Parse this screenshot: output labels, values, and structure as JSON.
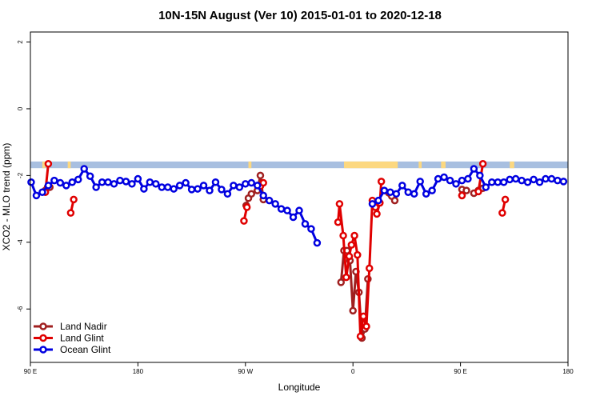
{
  "chart_data": {
    "type": "line",
    "title": "10N-15N August (Ver 10)   2015-01-01 to 2020-12-18",
    "xlabel": "Longitude",
    "ylabel": "XCO2 - MLO trend (ppm)",
    "xlim": [
      90,
      450
    ],
    "ylim": [
      -7.6,
      2.3
    ],
    "x_ticks": [
      {
        "value": 90,
        "label": "90 E"
      },
      {
        "value": 162,
        "label": "180"
      },
      {
        "value": 234,
        "label": "90 W"
      },
      {
        "value": 306,
        "label": "0"
      },
      {
        "value": 378,
        "label": "90 E"
      },
      {
        "value": 450,
        "label": "180"
      }
    ],
    "y_ticks": [
      {
        "value": 2,
        "label": "2"
      },
      {
        "value": 0,
        "label": "0"
      },
      {
        "value": -2,
        "label": "-2"
      },
      {
        "value": -4,
        "label": "-4"
      },
      {
        "value": -6,
        "label": "-6"
      }
    ],
    "grid": false,
    "legend": "bottom-left",
    "land_strip": {
      "y_range": [
        -1.58,
        -1.78
      ],
      "ocean_color": "#a8bfe0",
      "land_color": "#fcd880",
      "land_segments": [
        [
          98,
          100
        ],
        [
          115,
          117
        ],
        [
          236,
          238
        ],
        [
          300,
          336
        ],
        [
          350,
          352
        ],
        [
          365,
          368
        ],
        [
          411,
          414
        ]
      ]
    },
    "series": [
      {
        "name": "Land Nadir",
        "color": "#a02020",
        "segments": [
          [
            [
              100,
              -2.45
            ],
            [
              101.5,
              -2.35
            ],
            [
              103,
              -2.35
            ]
          ],
          [
            [
              234.5,
              -2.9
            ],
            [
              236,
              -2.68
            ],
            [
              238,
              -2.55
            ]
          ],
          [
            [
              242,
              -2.45
            ],
            [
              244,
              -2.0
            ],
            [
              246,
              -2.72
            ]
          ],
          [
            [
              298,
              -5.2
            ],
            [
              300,
              -4.25
            ],
            [
              302,
              -4.25
            ],
            [
              304,
              -4.55
            ],
            [
              306,
              -6.05
            ],
            [
              308,
              -4.88
            ],
            [
              310,
              -5.5
            ],
            [
              312,
              -6.87
            ],
            [
              314,
              -6.6
            ],
            [
              316,
              -5.1
            ]
          ],
          [
            [
              330,
              -2.52
            ],
            [
              332,
              -2.62
            ],
            [
              334,
              -2.75
            ]
          ],
          [
            [
              379,
              -2.42
            ],
            [
              382,
              -2.45
            ]
          ],
          [
            [
              387,
              -2.53
            ],
            [
              390,
              -2.45
            ],
            [
              393,
              -2.38
            ]
          ]
        ]
      },
      {
        "name": "Land Glint",
        "color": "#e00000",
        "segments": [
          [
            [
              100,
              -2.5
            ],
            [
              102,
              -1.65
            ]
          ],
          [
            [
              117,
              -3.12
            ],
            [
              119,
              -2.72
            ]
          ],
          [
            [
              233,
              -3.36
            ],
            [
              235,
              -2.95
            ]
          ],
          [
            [
              244,
              -2.32
            ],
            [
              246,
              -2.22
            ]
          ],
          [
            [
              296,
              -3.4
            ],
            [
              297,
              -2.85
            ],
            [
              299.5,
              -3.8
            ],
            [
              301.5,
              -5.05
            ],
            [
              303.5,
              -4.42
            ],
            [
              305,
              -4.08
            ],
            [
              307,
              -3.8
            ],
            [
              309,
              -4.38
            ],
            [
              311,
              -6.82
            ],
            [
              313,
              -6.22
            ],
            [
              315,
              -6.52
            ],
            [
              317,
              -4.78
            ],
            [
              319,
              -2.75
            ],
            [
              321,
              -2.95
            ],
            [
              322,
              -3.15
            ],
            [
              324,
              -2.82
            ],
            [
              325,
              -2.18
            ]
          ],
          [
            [
              379,
              -2.6
            ],
            [
              379,
              -2.6
            ]
          ],
          [
            [
              390,
              -2.48
            ],
            [
              393,
              -1.65
            ]
          ],
          [
            [
              406,
              -3.12
            ],
            [
              408,
              -2.72
            ]
          ]
        ]
      },
      {
        "name": "Ocean Glint",
        "color": "#0000e0",
        "segments": [
          [
            [
              90.5,
              -2.2
            ],
            [
              94,
              -2.6
            ],
            [
              98,
              -2.5
            ],
            [
              102,
              -2.3
            ],
            [
              106,
              -2.15
            ],
            [
              110,
              -2.22
            ],
            [
              114,
              -2.3
            ],
            [
              118,
              -2.2
            ],
            [
              122,
              -2.12
            ],
            [
              126,
              -1.8
            ],
            [
              130,
              -2.02
            ],
            [
              134,
              -2.35
            ],
            [
              138,
              -2.2
            ],
            [
              142,
              -2.2
            ],
            [
              146,
              -2.25
            ],
            [
              150,
              -2.15
            ],
            [
              154,
              -2.18
            ],
            [
              158,
              -2.25
            ],
            [
              162,
              -2.1
            ],
            [
              166,
              -2.4
            ],
            [
              170,
              -2.2
            ],
            [
              174,
              -2.25
            ],
            [
              178,
              -2.35
            ],
            [
              182,
              -2.35
            ],
            [
              186,
              -2.4
            ],
            [
              190,
              -2.3
            ],
            [
              194,
              -2.22
            ],
            [
              198,
              -2.42
            ],
            [
              202,
              -2.4
            ],
            [
              206,
              -2.3
            ],
            [
              210,
              -2.45
            ],
            [
              214,
              -2.2
            ],
            [
              218,
              -2.42
            ],
            [
              222,
              -2.55
            ],
            [
              226,
              -2.3
            ],
            [
              230,
              -2.35
            ],
            [
              234,
              -2.25
            ],
            [
              238,
              -2.22
            ],
            [
              242,
              -2.3
            ],
            [
              246,
              -2.6
            ],
            [
              250,
              -2.75
            ],
            [
              254,
              -2.85
            ],
            [
              258,
              -3.0
            ],
            [
              262,
              -3.05
            ],
            [
              266,
              -3.25
            ],
            [
              270,
              -3.05
            ],
            [
              274,
              -3.45
            ],
            [
              278,
              -3.6
            ],
            [
              282,
              -4.02
            ]
          ]
        ]
      },
      {
        "name": "Ocean Glint",
        "color": "#0000e0",
        "segments": [
          [
            [
              319,
              -2.85
            ],
            [
              323,
              -2.75
            ],
            [
              327,
              -2.45
            ],
            [
              331,
              -2.5
            ],
            [
              335,
              -2.55
            ],
            [
              339,
              -2.3
            ],
            [
              343,
              -2.5
            ],
            [
              347,
              -2.55
            ],
            [
              351,
              -2.18
            ],
            [
              355,
              -2.55
            ],
            [
              359,
              -2.45
            ],
            [
              363,
              -2.1
            ],
            [
              367,
              -2.05
            ],
            [
              371,
              -2.15
            ],
            [
              375,
              -2.25
            ],
            [
              379,
              -2.15
            ],
            [
              383,
              -2.1
            ],
            [
              387,
              -1.8
            ],
            [
              391,
              -2.0
            ],
            [
              395,
              -2.35
            ],
            [
              399,
              -2.2
            ],
            [
              403,
              -2.2
            ],
            [
              407,
              -2.2
            ],
            [
              411,
              -2.12
            ],
            [
              415,
              -2.1
            ],
            [
              419,
              -2.15
            ],
            [
              423,
              -2.2
            ],
            [
              427,
              -2.12
            ],
            [
              431,
              -2.2
            ],
            [
              435,
              -2.1
            ],
            [
              439,
              -2.1
            ],
            [
              443,
              -2.15
            ],
            [
              447,
              -2.18
            ]
          ]
        ]
      }
    ],
    "legend_entries": [
      "Land Nadir",
      "Land Glint",
      "Ocean Glint"
    ]
  }
}
